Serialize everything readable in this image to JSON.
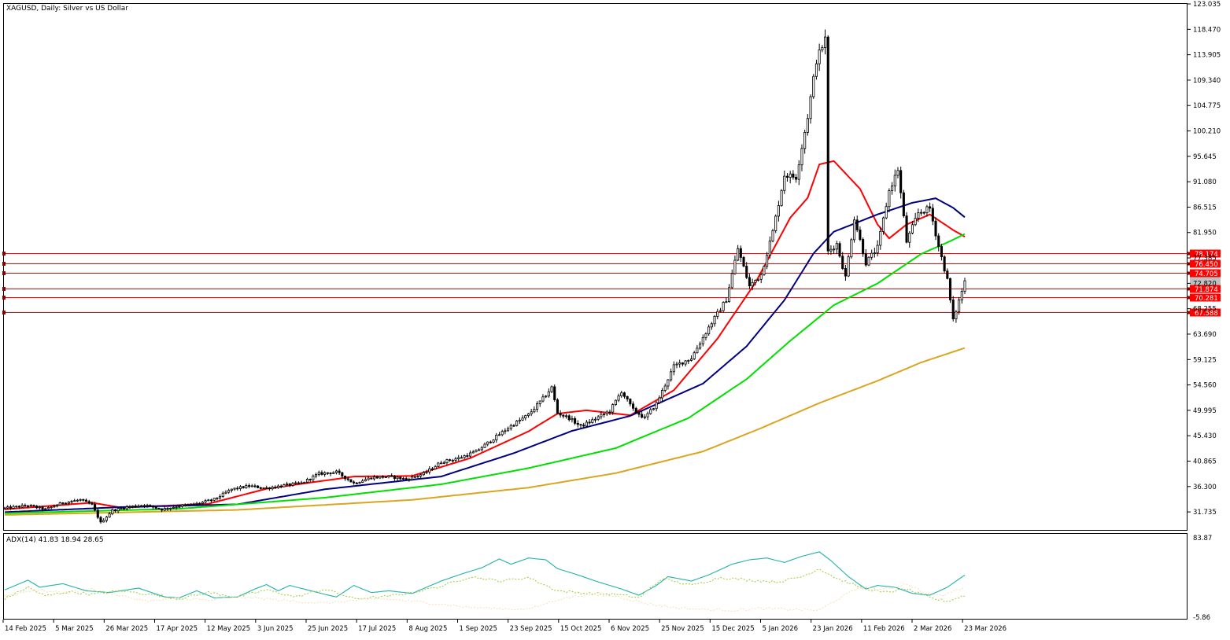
{
  "chart_title": "XAGUSD, Daily:  Silver vs US Dollar",
  "indicator_label": "ADX(14) 41.83 18.94 28.65",
  "colors": {
    "background": "#ffffff",
    "frame": "#000000",
    "candle": "#000000",
    "ma_fast": "#ff0000",
    "ma_mid": "#000080",
    "ma_slow": "#00e000",
    "ma_long": "#daa520",
    "level_line": "#ff0000",
    "level_label_bg": "#ff0000",
    "level_label_text": "#ffffff",
    "adx_main": "#20b2aa",
    "adx_plus": "#9acd32",
    "adx_minus": "#f5deb3"
  },
  "chart_data": [
    {
      "type": "candlestick",
      "title": "XAGUSD, Daily:  Silver vs US Dollar",
      "ylim": [
        28.5,
        123.035
      ],
      "y_ticks": [
        "123.035",
        "118.470",
        "113.905",
        "109.340",
        "104.775",
        "100.210",
        "95.645",
        "91.080",
        "86.515",
        "81.950",
        "77.385",
        "72.820",
        "68.255",
        "63.690",
        "59.125",
        "54.560",
        "49.995",
        "45.430",
        "40.865",
        "36.300",
        "31.735"
      ],
      "x_ticks": [
        "14 Feb 2025",
        "5 Mar 2025",
        "26 Mar 2025",
        "17 Apr 2025",
        "12 May 2025",
        "3 Jun 2025",
        "25 Jun 2025",
        "17 Jul 2025",
        "8 Aug 2025",
        "1 Sep 2025",
        "23 Sep 2025",
        "15 Oct 2025",
        "6 Nov 2025",
        "25 Nov 2025",
        "15 Dec 2025",
        "5 Jan 2026",
        "23 Jan 2026",
        "11 Feb 2026",
        "2 Mar 2026",
        "23 Mar 2026"
      ],
      "close_waypoints": [
        [
          0,
          32.4
        ],
        [
          8,
          32.9
        ],
        [
          14,
          32.2
        ],
        [
          20,
          33.4
        ],
        [
          26,
          33.9
        ],
        [
          30,
          33.0
        ],
        [
          33,
          29.8
        ],
        [
          37,
          32.0
        ],
        [
          42,
          32.6
        ],
        [
          48,
          33.0
        ],
        [
          54,
          32.2
        ],
        [
          60,
          32.8
        ],
        [
          66,
          33.2
        ],
        [
          72,
          34.0
        ],
        [
          78,
          35.8
        ],
        [
          84,
          36.4
        ],
        [
          90,
          36.0
        ],
        [
          96,
          36.5
        ],
        [
          102,
          36.9
        ],
        [
          108,
          38.6
        ],
        [
          114,
          38.9
        ],
        [
          120,
          36.9
        ],
        [
          126,
          37.9
        ],
        [
          132,
          38.1
        ],
        [
          138,
          37.6
        ],
        [
          144,
          38.6
        ],
        [
          150,
          40.7
        ],
        [
          156,
          41.4
        ],
        [
          162,
          42.6
        ],
        [
          168,
          44.9
        ],
        [
          174,
          47.2
        ],
        [
          180,
          49.2
        ],
        [
          185,
          52.1
        ],
        [
          188,
          54.1
        ],
        [
          190,
          49.5
        ],
        [
          194,
          48.6
        ],
        [
          198,
          47.1
        ],
        [
          202,
          48.2
        ],
        [
          208,
          49.9
        ],
        [
          212,
          53.4
        ],
        [
          216,
          50.1
        ],
        [
          220,
          48.6
        ],
        [
          224,
          51.2
        ],
        [
          230,
          57.9
        ],
        [
          236,
          59.4
        ],
        [
          242,
          64.9
        ],
        [
          248,
          69.9
        ],
        [
          252,
          79.1
        ],
        [
          256,
          72.3
        ],
        [
          260,
          74.4
        ],
        [
          264,
          82.1
        ],
        [
          268,
          92.3
        ],
        [
          272,
          91.9
        ],
        [
          276,
          102.8
        ],
        [
          279,
          112.9
        ],
        [
          282,
          116.7
        ],
        [
          283,
          78.5
        ],
        [
          286,
          79.9
        ],
        [
          289,
          73.9
        ],
        [
          292,
          84.6
        ],
        [
          296,
          76.5
        ],
        [
          300,
          79.2
        ],
        [
          304,
          89.4
        ],
        [
          307,
          93.3
        ],
        [
          310,
          80.3
        ],
        [
          314,
          85.5
        ],
        [
          318,
          86.3
        ],
        [
          321,
          79.5
        ],
        [
          324,
          73.4
        ],
        [
          326,
          66.1
        ],
        [
          328,
          69.7
        ],
        [
          330,
          73.2
        ]
      ],
      "moving_averages": [
        {
          "label": "fast",
          "color_key": "ma_fast",
          "waypoints": [
            [
              0,
              32.2
            ],
            [
              30,
              33.4
            ],
            [
              40,
              32.5
            ],
            [
              70,
              33.2
            ],
            [
              90,
              35.9
            ],
            [
              120,
              38.1
            ],
            [
              140,
              38.2
            ],
            [
              160,
              41.4
            ],
            [
              180,
              46.2
            ],
            [
              190,
              49.4
            ],
            [
              200,
              50.0
            ],
            [
              215,
              49.1
            ],
            [
              230,
              53.6
            ],
            [
              245,
              62.9
            ],
            [
              258,
              72.9
            ],
            [
              270,
              84.6
            ],
            [
              276,
              88.2
            ],
            [
              280,
              94.2
            ],
            [
              285,
              94.8
            ],
            [
              294,
              89.8
            ],
            [
              300,
              83.4
            ],
            [
              304,
              80.9
            ],
            [
              310,
              83.4
            ],
            [
              318,
              85.2
            ],
            [
              326,
              82.4
            ],
            [
              330,
              81.2
            ]
          ]
        },
        {
          "label": "mid",
          "color_key": "ma_mid",
          "waypoints": [
            [
              0,
              31.7
            ],
            [
              40,
              32.6
            ],
            [
              80,
              33.1
            ],
            [
              110,
              35.8
            ],
            [
              150,
              38.1
            ],
            [
              175,
              42.3
            ],
            [
              195,
              46.3
            ],
            [
              215,
              49.0
            ],
            [
              240,
              54.8
            ],
            [
              255,
              61.5
            ],
            [
              268,
              69.8
            ],
            [
              278,
              78.2
            ],
            [
              285,
              82.1
            ],
            [
              300,
              85.2
            ],
            [
              312,
              87.3
            ],
            [
              320,
              88.1
            ],
            [
              326,
              86.4
            ],
            [
              330,
              84.7
            ]
          ]
        },
        {
          "label": "slow",
          "color_key": "ma_slow",
          "waypoints": [
            [
              0,
              31.5
            ],
            [
              60,
              32.3
            ],
            [
              110,
              34.3
            ],
            [
              150,
              36.7
            ],
            [
              180,
              39.6
            ],
            [
              210,
              43.2
            ],
            [
              235,
              48.6
            ],
            [
              255,
              55.6
            ],
            [
              270,
              62.5
            ],
            [
              285,
              68.9
            ],
            [
              300,
              72.8
            ],
            [
              315,
              78.1
            ],
            [
              325,
              80.4
            ],
            [
              330,
              81.7
            ]
          ]
        },
        {
          "label": "long",
          "color_key": "ma_long",
          "waypoints": [
            [
              0,
              31.2
            ],
            [
              80,
              32.1
            ],
            [
              140,
              33.9
            ],
            [
              180,
              36.1
            ],
            [
              210,
              38.7
            ],
            [
              240,
              42.6
            ],
            [
              260,
              46.8
            ],
            [
              280,
              51.3
            ],
            [
              300,
              55.3
            ],
            [
              315,
              58.6
            ],
            [
              330,
              61.2
            ]
          ]
        }
      ],
      "horizontal_levels": [
        {
          "label": "78.174",
          "value": 78.174
        },
        {
          "label": "76.450",
          "value": 76.45
        },
        {
          "label": "74.705",
          "value": 74.705
        },
        {
          "label": "71.874",
          "value": 71.874
        },
        {
          "label": "70.281",
          "value": 70.281
        },
        {
          "label": "67.588",
          "value": 67.588
        }
      ],
      "current_price": 73.3,
      "last_index": 330
    },
    {
      "type": "line",
      "title": "ADX(14) 41.83 18.94 28.65",
      "ylim": [
        -5.86,
        83.87
      ],
      "y_ticks": [
        "83.87",
        "-5.86"
      ],
      "series": [
        {
          "color_key": "adx_main",
          "waypoints": [
            [
              0,
              25
            ],
            [
              8,
              36
            ],
            [
              12,
              28
            ],
            [
              20,
              32
            ],
            [
              28,
              24
            ],
            [
              36,
              22
            ],
            [
              46,
              27
            ],
            [
              55,
              17
            ],
            [
              60,
              16
            ],
            [
              66,
              24
            ],
            [
              72,
              16
            ],
            [
              80,
              17
            ],
            [
              86,
              26
            ],
            [
              90,
              31
            ],
            [
              94,
              24
            ],
            [
              98,
              30
            ],
            [
              104,
              25
            ],
            [
              110,
              20
            ],
            [
              114,
              17
            ],
            [
              120,
              30
            ],
            [
              126,
              22
            ],
            [
              132,
              24
            ],
            [
              140,
              21
            ],
            [
              150,
              35
            ],
            [
              158,
              44
            ],
            [
              164,
              50
            ],
            [
              170,
              60
            ],
            [
              174,
              54
            ],
            [
              180,
              61
            ],
            [
              186,
              59
            ],
            [
              190,
              49
            ],
            [
              196,
              43
            ],
            [
              204,
              34
            ],
            [
              212,
              26
            ],
            [
              218,
              19
            ],
            [
              224,
              30
            ],
            [
              228,
              40
            ],
            [
              236,
              35
            ],
            [
              242,
              42
            ],
            [
              250,
              54
            ],
            [
              256,
              59
            ],
            [
              262,
              61
            ],
            [
              268,
              56
            ],
            [
              274,
              63
            ],
            [
              280,
              68
            ],
            [
              284,
              58
            ],
            [
              290,
              40
            ],
            [
              296,
              26
            ],
            [
              300,
              30
            ],
            [
              306,
              28
            ],
            [
              312,
              21
            ],
            [
              318,
              19
            ],
            [
              324,
              28
            ],
            [
              330,
              41.8
            ]
          ]
        },
        {
          "color_key": "adx_plus",
          "waypoints": [
            [
              0,
              15
            ],
            [
              8,
              28
            ],
            [
              14,
              18
            ],
            [
              22,
              23
            ],
            [
              30,
              20
            ],
            [
              40,
              24
            ],
            [
              50,
              20
            ],
            [
              60,
              15
            ],
            [
              70,
              22
            ],
            [
              80,
              17
            ],
            [
              90,
              25
            ],
            [
              100,
              17
            ],
            [
              110,
              26
            ],
            [
              120,
              15
            ],
            [
              130,
              17
            ],
            [
              140,
              22
            ],
            [
              150,
              29
            ],
            [
              160,
              40
            ],
            [
              170,
              35
            ],
            [
              180,
              39
            ],
            [
              190,
              24
            ],
            [
              200,
              21
            ],
            [
              210,
              20
            ],
            [
              218,
              16
            ],
            [
              226,
              38
            ],
            [
              236,
              30
            ],
            [
              246,
              39
            ],
            [
              256,
              36
            ],
            [
              266,
              34
            ],
            [
              274,
              40
            ],
            [
              280,
              49
            ],
            [
              286,
              38
            ],
            [
              294,
              28
            ],
            [
              302,
              22
            ],
            [
              310,
              26
            ],
            [
              318,
              16
            ],
            [
              324,
              12
            ],
            [
              330,
              18.9
            ]
          ]
        },
        {
          "color_key": "adx_minus",
          "waypoints": [
            [
              0,
              18
            ],
            [
              10,
              25
            ],
            [
              20,
              22
            ],
            [
              30,
              26
            ],
            [
              40,
              18
            ],
            [
              50,
              12
            ],
            [
              60,
              16
            ],
            [
              70,
              13
            ],
            [
              80,
              17
            ],
            [
              90,
              15
            ],
            [
              100,
              12
            ],
            [
              110,
              10
            ],
            [
              120,
              13
            ],
            [
              130,
              15
            ],
            [
              140,
              12
            ],
            [
              150,
              9
            ],
            [
              160,
              5
            ],
            [
              170,
              4
            ],
            [
              180,
              3
            ],
            [
              190,
              14
            ],
            [
              200,
              20
            ],
            [
              210,
              18
            ],
            [
              220,
              10
            ],
            [
              230,
              5
            ],
            [
              240,
              3
            ],
            [
              250,
              2
            ],
            [
              260,
              4
            ],
            [
              270,
              3
            ],
            [
              280,
              2
            ],
            [
              286,
              14
            ],
            [
              294,
              28
            ],
            [
              302,
              25
            ],
            [
              310,
              32
            ],
            [
              316,
              22
            ],
            [
              322,
              18
            ],
            [
              330,
              28.65
            ]
          ]
        }
      ]
    }
  ]
}
